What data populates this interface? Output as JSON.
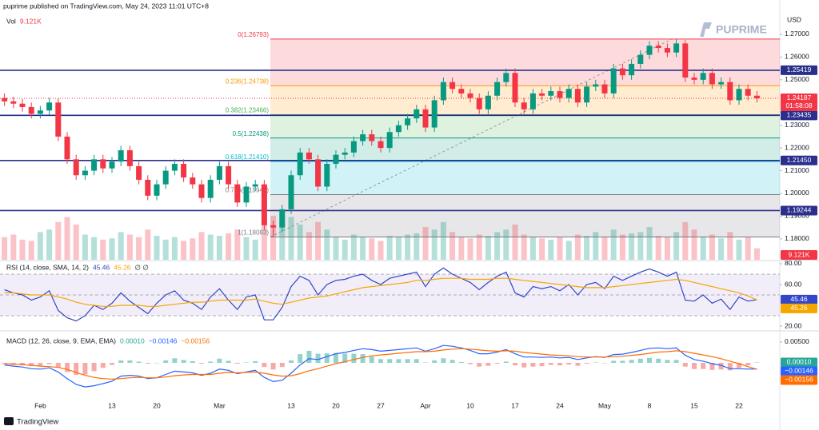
{
  "header": {
    "attribution": "puprime published on TradingView.com, May 24, 2023 11:01 UTC+8",
    "brand": "PUPRIME",
    "footer": "TradingView"
  },
  "chart_data": [
    {
      "type": "candlestick",
      "currency": "USD",
      "volume_title": "Vol",
      "volume_last_label": "9.121K",
      "categories": [
        null,
        null,
        null,
        null,
        "Feb",
        null,
        null,
        null,
        null,
        null,
        null,
        null,
        "13",
        null,
        null,
        null,
        null,
        "20",
        null,
        null,
        null,
        null,
        null,
        null,
        "Mar",
        null,
        null,
        null,
        null,
        null,
        null,
        null,
        "13",
        null,
        null,
        null,
        null,
        "20",
        null,
        null,
        null,
        null,
        "27",
        null,
        null,
        null,
        null,
        "Apr",
        null,
        null,
        null,
        null,
        "10",
        null,
        null,
        null,
        null,
        "17",
        null,
        null,
        null,
        null,
        "24",
        null,
        null,
        null,
        null,
        "May",
        null,
        null,
        null,
        null,
        "8",
        null,
        null,
        null,
        null,
        "15",
        null,
        null,
        null,
        null,
        "22",
        null,
        null
      ],
      "open": [
        1.242,
        1.2405,
        1.2395,
        1.238,
        1.235,
        1.2365,
        1.24,
        1.225,
        1.215,
        1.208,
        1.21,
        1.215,
        1.211,
        1.214,
        1.219,
        1.212,
        1.206,
        1.199,
        1.204,
        1.21,
        1.213,
        1.207,
        1.204,
        1.198,
        1.206,
        1.212,
        1.204,
        1.196,
        1.203,
        1.204,
        1.186,
        1.185,
        1.193,
        1.208,
        1.218,
        1.215,
        1.203,
        1.213,
        1.217,
        1.218,
        1.223,
        1.226,
        1.223,
        1.22,
        1.227,
        1.23,
        1.233,
        1.237,
        1.229,
        1.241,
        1.249,
        1.246,
        1.244,
        1.242,
        1.237,
        1.243,
        1.249,
        1.253,
        1.24,
        1.237,
        1.244,
        1.243,
        1.245,
        1.242,
        1.246,
        1.24,
        1.247,
        1.248,
        1.244,
        1.255,
        1.252,
        1.257,
        1.261,
        1.265,
        1.264,
        1.262,
        1.266,
        1.251,
        1.25,
        1.253,
        1.248,
        1.249,
        1.241,
        1.246,
        1.243
      ],
      "high": [
        1.244,
        1.2425,
        1.2415,
        1.24,
        1.2385,
        1.242,
        1.242,
        1.227,
        1.217,
        1.212,
        1.217,
        1.217,
        1.216,
        1.221,
        1.221,
        1.214,
        1.208,
        1.206,
        1.212,
        1.215,
        1.215,
        1.209,
        1.206,
        1.208,
        1.214,
        1.214,
        1.206,
        1.205,
        1.206,
        1.206,
        1.188,
        1.195,
        1.21,
        1.22,
        1.22,
        1.217,
        1.215,
        1.219,
        1.22,
        1.225,
        1.228,
        1.228,
        1.225,
        1.229,
        1.232,
        1.235,
        1.239,
        1.239,
        1.243,
        1.251,
        1.251,
        1.248,
        1.246,
        1.244,
        1.245,
        1.251,
        1.255,
        1.255,
        1.242,
        1.246,
        1.246,
        1.247,
        1.247,
        1.248,
        1.248,
        1.249,
        1.25,
        1.25,
        1.257,
        1.257,
        1.259,
        1.263,
        1.267,
        1.267,
        1.266,
        1.2679,
        1.2675,
        1.253,
        1.255,
        1.255,
        1.251,
        1.251,
        1.248,
        1.248,
        1.245
      ],
      "low": [
        1.2385,
        1.2375,
        1.236,
        1.233,
        1.233,
        1.2345,
        1.223,
        1.213,
        1.206,
        1.206,
        1.208,
        1.209,
        1.209,
        1.212,
        1.21,
        1.204,
        1.197,
        1.197,
        1.202,
        1.208,
        1.205,
        1.202,
        1.196,
        1.196,
        1.204,
        1.202,
        1.194,
        1.194,
        1.201,
        1.184,
        1.1808,
        1.183,
        1.191,
        1.206,
        1.213,
        1.201,
        1.201,
        1.211,
        1.215,
        1.216,
        1.221,
        1.221,
        1.218,
        1.218,
        1.225,
        1.228,
        1.231,
        1.227,
        1.227,
        1.239,
        1.244,
        1.242,
        1.24,
        1.235,
        1.235,
        1.241,
        1.247,
        1.238,
        1.235,
        1.235,
        1.241,
        1.241,
        1.24,
        1.24,
        1.238,
        1.238,
        1.245,
        1.242,
        1.242,
        1.25,
        1.25,
        1.255,
        1.259,
        1.262,
        1.26,
        1.26,
        1.249,
        1.248,
        1.248,
        1.246,
        1.246,
        1.239,
        1.239,
        1.241,
        1.24
      ],
      "close": [
        1.2405,
        1.2395,
        1.238,
        1.235,
        1.2365,
        1.24,
        1.225,
        1.215,
        1.208,
        1.21,
        1.215,
        1.211,
        1.214,
        1.219,
        1.212,
        1.206,
        1.199,
        1.204,
        1.21,
        1.213,
        1.207,
        1.204,
        1.198,
        1.206,
        1.212,
        1.204,
        1.196,
        1.203,
        1.204,
        1.186,
        1.185,
        1.193,
        1.208,
        1.218,
        1.215,
        1.203,
        1.213,
        1.217,
        1.218,
        1.223,
        1.226,
        1.223,
        1.22,
        1.227,
        1.23,
        1.233,
        1.237,
        1.229,
        1.241,
        1.249,
        1.246,
        1.244,
        1.242,
        1.237,
        1.243,
        1.249,
        1.253,
        1.24,
        1.237,
        1.244,
        1.243,
        1.245,
        1.242,
        1.246,
        1.24,
        1.247,
        1.248,
        1.244,
        1.255,
        1.252,
        1.257,
        1.261,
        1.265,
        1.264,
        1.262,
        1.266,
        1.251,
        1.25,
        1.253,
        1.248,
        1.249,
        1.241,
        1.246,
        1.243,
        1.24187
      ],
      "volume": [
        18,
        20,
        16,
        15,
        22,
        24,
        30,
        34,
        28,
        20,
        18,
        16,
        17,
        22,
        20,
        18,
        24,
        19,
        16,
        18,
        15,
        17,
        22,
        20,
        19,
        21,
        24,
        18,
        16,
        32,
        35,
        30,
        34,
        28,
        22,
        30,
        24,
        18,
        16,
        20,
        18,
        17,
        15,
        19,
        18,
        20,
        21,
        26,
        24,
        30,
        22,
        18,
        17,
        20,
        19,
        22,
        24,
        28,
        20,
        18,
        17,
        16,
        18,
        15,
        20,
        19,
        22,
        18,
        24,
        20,
        21,
        22,
        26,
        19,
        18,
        22,
        30,
        24,
        18,
        20,
        17,
        22,
        16,
        18,
        9.121
      ],
      "volume_lim": [
        0,
        200
      ],
      "up_color": "#089981",
      "down_color": "#f23645",
      "ylim": [
        1.1708,
        1.2816
      ],
      "yticks": [
        {
          "value": 1.27,
          "label": "1.27000"
        },
        {
          "value": 1.26,
          "label": "1.26000"
        },
        {
          "value": 1.25,
          "label": "1.25000"
        },
        {
          "value": 1.23,
          "label": "1.23000"
        },
        {
          "value": 1.22,
          "label": "1.22000"
        },
        {
          "value": 1.21,
          "label": "1.21000"
        },
        {
          "value": 1.2,
          "label": "1.20000"
        },
        {
          "value": 1.19,
          "label": "1.19000"
        },
        {
          "value": 1.18,
          "label": "1.18000"
        }
      ],
      "levels": [
        1.25419,
        1.23435,
        {
          "value": 1.2145,
          "label": "1.21450"
        },
        1.19244
      ],
      "level_color": "#2a2e8c",
      "last_price": 1.24187,
      "countdown": "01:58:08",
      "fib": [
        {
          "value": 1.26793,
          "label": "0(1.26793)"
        },
        {
          "value": 1.24738,
          "label": "0.236(1.24738)"
        },
        {
          "value": 1.23466,
          "label": "0.382(1.23466)"
        },
        {
          "value": 1.22438,
          "label": "0.5(1.22438)"
        },
        {
          "value": 1.2141,
          "label": "0.618(1.21410)"
        },
        {
          "value": 1.19947,
          "label": "0.786(1.19947)"
        },
        {
          "value": 1.18083,
          "label": "1(1.18083)"
        }
      ],
      "fib_colors": [
        "#f23645",
        "#ff9800",
        "#4caf50",
        "#089981",
        "#00bcd4",
        "#787b86"
      ],
      "grid": false
    },
    {
      "type": "line",
      "title": "RSI (14, close, SMA, 14, 2)",
      "suffix": "∅ ∅",
      "series": [
        {
          "color": "#3246c8",
          "values": [
            55,
            52,
            50,
            45,
            48,
            54,
            35,
            28,
            25,
            30,
            40,
            36,
            42,
            52,
            44,
            38,
            32,
            42,
            50,
            54,
            45,
            42,
            36,
            48,
            56,
            45,
            36,
            48,
            50,
            26,
            26,
            38,
            58,
            68,
            64,
            50,
            60,
            64,
            65,
            68,
            70,
            64,
            60,
            66,
            68,
            70,
            72,
            58,
            70,
            76,
            70,
            66,
            62,
            55,
            62,
            68,
            72,
            52,
            48,
            58,
            56,
            58,
            54,
            60,
            50,
            60,
            62,
            56,
            68,
            64,
            68,
            72,
            75,
            72,
            68,
            72,
            45,
            44,
            50,
            42,
            46,
            36,
            48,
            44,
            45.46
          ]
        },
        {
          "color": "#f7a600",
          "values": [
            52,
            52,
            51,
            50,
            50,
            50,
            48,
            46,
            43,
            41,
            40,
            39,
            39,
            40,
            40,
            40,
            39,
            39,
            40,
            41,
            42,
            43,
            43,
            44,
            45,
            45,
            45,
            45,
            46,
            44,
            42,
            41,
            43,
            45,
            47,
            48,
            49,
            51,
            53,
            55,
            57,
            58,
            59,
            60,
            61,
            62,
            64,
            64,
            65,
            66,
            66,
            66,
            65,
            65,
            65,
            66,
            66,
            65,
            64,
            63,
            62,
            61,
            60,
            59,
            58,
            57,
            57,
            57,
            58,
            59,
            60,
            61,
            62,
            63,
            64,
            65,
            64,
            62,
            60,
            58,
            56,
            54,
            52,
            49,
            45.26
          ]
        }
      ],
      "bands": [
        30,
        50,
        70
      ],
      "band_color": "#7e57c2",
      "ylim": [
        16.2,
        82.3
      ],
      "yticks": [
        {
          "value": 80,
          "label": "80.00"
        },
        {
          "value": 60,
          "label": "60.00"
        },
        {
          "value": 20,
          "label": "20.00"
        }
      ]
    },
    {
      "type": "macd",
      "title": "MACD (12, 26, close, 9, EMA, EMA)",
      "histogram": {
        "up_color": "#26a69a",
        "down_color": "#ef5350",
        "last_label": "0.00010",
        "values": [
          -0.0003,
          -0.0005,
          -0.0006,
          -0.0008,
          -0.0007,
          -0.0003,
          -0.0011,
          -0.0022,
          -0.0029,
          -0.0028,
          -0.002,
          -0.0012,
          -0.0005,
          0.0006,
          0.0006,
          0.0003,
          -0.0002,
          0,
          0.0006,
          0.0011,
          0.0007,
          0.0004,
          -0.0002,
          0.0003,
          0.001,
          0.0005,
          -0.0002,
          0.0001,
          0.0004,
          -0.001,
          -0.0016,
          -0.001,
          0.0006,
          0.0021,
          0.0029,
          0.0022,
          0.0023,
          0.0024,
          0.0022,
          0.0022,
          0.0021,
          0.0015,
          0.0009,
          0.0009,
          0.0009,
          0.0009,
          0.0009,
          0.0001,
          0.0006,
          0.0011,
          0.0007,
          0.0002,
          -0.0003,
          -0.0009,
          -0.0007,
          -0.0002,
          0.0003,
          -0.0006,
          -0.0011,
          -0.0009,
          -0.0008,
          -0.0005,
          -0.0006,
          -0.0004,
          -0.0007,
          -0.0002,
          0.0001,
          -0.0001,
          0.0005,
          0.0005,
          0.0007,
          0.001,
          0.0012,
          0.001,
          0.0007,
          0.0007,
          -0.0009,
          -0.0015,
          -0.0015,
          -0.0017,
          -0.0016,
          -0.0018,
          -0.0012,
          -0.0006,
          0.0001
        ]
      },
      "series": [
        {
          "color": "#2962ff",
          "last_label": "−0.00146",
          "values": [
            -0.0005,
            -0.0008,
            -0.001,
            -0.0014,
            -0.0015,
            -0.0012,
            -0.0022,
            -0.0038,
            -0.0052,
            -0.0058,
            -0.0055,
            -0.005,
            -0.0044,
            -0.0032,
            -0.003,
            -0.0032,
            -0.0038,
            -0.0036,
            -0.0028,
            -0.002,
            -0.0022,
            -0.0024,
            -0.003,
            -0.0025,
            -0.0015,
            -0.0018,
            -0.0026,
            -0.0022,
            -0.0018,
            -0.0035,
            -0.0045,
            -0.0042,
            -0.0025,
            -0.0005,
            0.001,
            0.0008,
            0.0015,
            0.0022,
            0.0025,
            0.003,
            0.0034,
            0.0032,
            0.0028,
            0.003,
            0.0032,
            0.0034,
            0.0036,
            0.0028,
            0.0034,
            0.0042,
            0.004,
            0.0036,
            0.003,
            0.0022,
            0.0022,
            0.0026,
            0.0032,
            0.0022,
            0.0014,
            0.0014,
            0.0013,
            0.0014,
            0.0012,
            0.0013,
            0.0008,
            0.0012,
            0.0015,
            0.0013,
            0.002,
            0.0021,
            0.0025,
            0.003,
            0.0035,
            0.0036,
            0.0034,
            0.0036,
            0.0018,
            0.0008,
            0.0004,
            -0.0002,
            -0.0006,
            -0.0014,
            -0.0014,
            -0.0015,
            -0.00146
          ]
        },
        {
          "color": "#ff6d00",
          "last_label": "−0.00156",
          "values": [
            -0.0002,
            -0.0003,
            -0.0004,
            -0.0006,
            -0.0008,
            -0.0009,
            -0.0011,
            -0.0016,
            -0.0023,
            -0.003,
            -0.0035,
            -0.0038,
            -0.0039,
            -0.0038,
            -0.0036,
            -0.0035,
            -0.0036,
            -0.0036,
            -0.0034,
            -0.0031,
            -0.0029,
            -0.0028,
            -0.0028,
            -0.0028,
            -0.0025,
            -0.0023,
            -0.0024,
            -0.0023,
            -0.0022,
            -0.0025,
            -0.0029,
            -0.0032,
            -0.0031,
            -0.0026,
            -0.0019,
            -0.0014,
            -0.0008,
            -0.0002,
            0.0003,
            0.0008,
            0.0013,
            0.0017,
            0.0019,
            0.0021,
            0.0023,
            0.0025,
            0.0027,
            0.0027,
            0.0028,
            0.0031,
            0.0033,
            0.0034,
            0.0033,
            0.0031,
            0.0029,
            0.0028,
            0.0029,
            0.0028,
            0.0025,
            0.0023,
            0.0021,
            0.0019,
            0.0018,
            0.0017,
            0.0015,
            0.0014,
            0.0014,
            0.0014,
            0.0015,
            0.0016,
            0.0018,
            0.002,
            0.0023,
            0.0026,
            0.0027,
            0.0029,
            0.0027,
            0.0023,
            0.0019,
            0.0015,
            0.001,
            0.0004,
            -0.0002,
            -0.0009,
            -0.00156
          ]
        }
      ],
      "ylim": [
        -0.00885,
        0.0075
      ],
      "yticks": [
        {
          "value": 0.005,
          "label": "0.00500"
        }
      ]
    }
  ]
}
